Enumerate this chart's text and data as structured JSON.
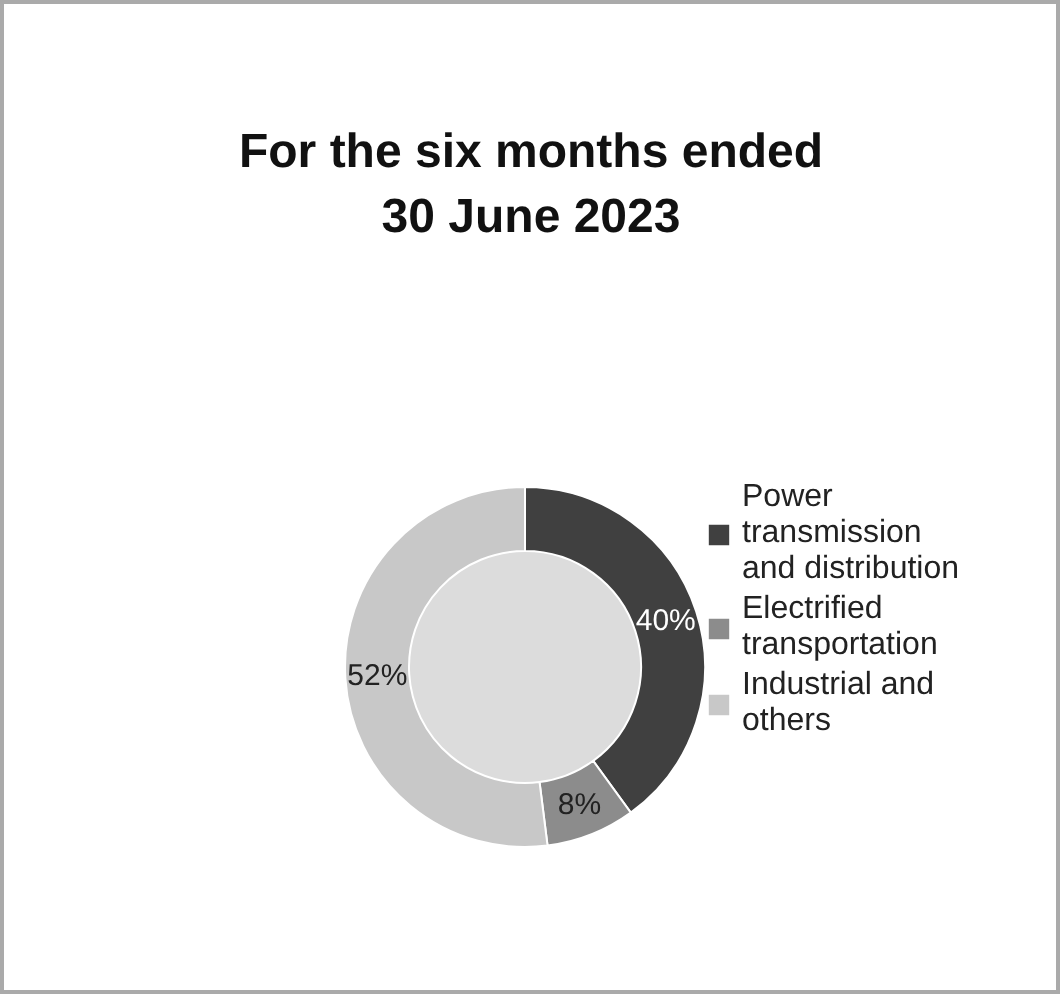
{
  "chart_data": {
    "type": "donut",
    "title": "For the six months ended\n30 June 2023",
    "categories": [
      "Power\ntransmission\nand distribution",
      "Electrified\ntransportation",
      "Industrial and\nothers"
    ],
    "values": [
      40,
      8,
      52
    ],
    "colors": [
      "#404040",
      "#8c8c8c",
      "#c8c8c8"
    ],
    "value_labels": [
      "40%",
      "8%",
      "52%"
    ],
    "legend": "right"
  }
}
